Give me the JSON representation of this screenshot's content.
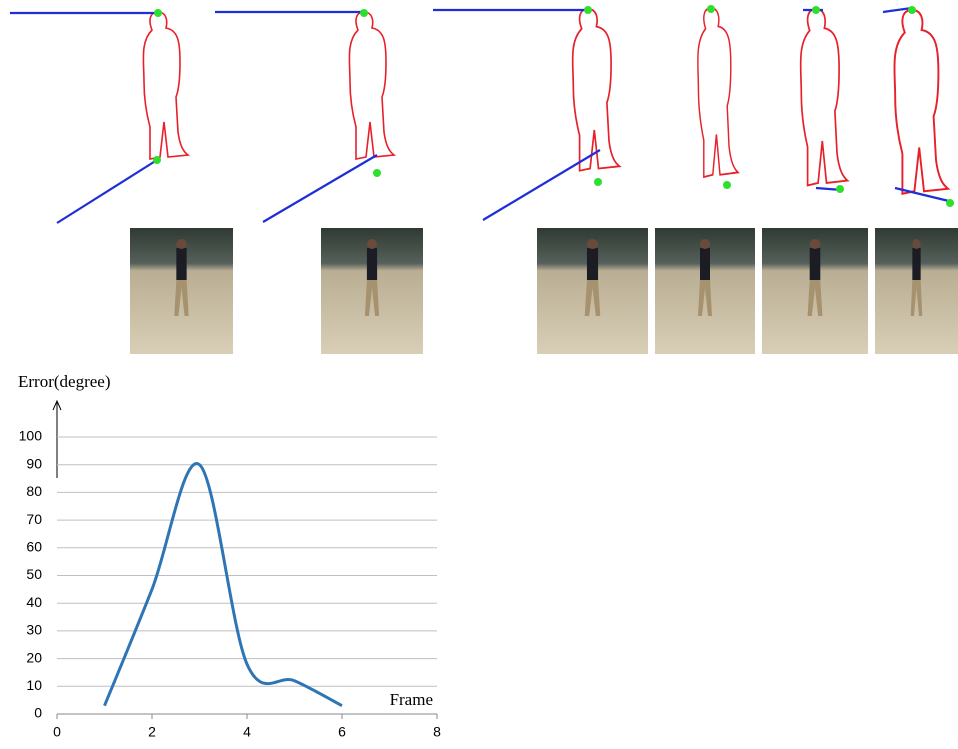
{
  "chart_data": {
    "type": "line",
    "y_label": "Error(degree)",
    "x_label": "Frame",
    "x": [
      1,
      2,
      3,
      4,
      5,
      6
    ],
    "values": [
      3,
      45,
      90,
      18,
      12,
      3
    ],
    "color": "#2e75b6",
    "xlim": [
      0,
      8
    ],
    "xticks": [
      0,
      2,
      4,
      6,
      8
    ],
    "ylim": [
      0,
      100
    ],
    "yticks": [
      0,
      10,
      20,
      30,
      40,
      50,
      60,
      70,
      80,
      90,
      100
    ],
    "grid": true
  }
}
